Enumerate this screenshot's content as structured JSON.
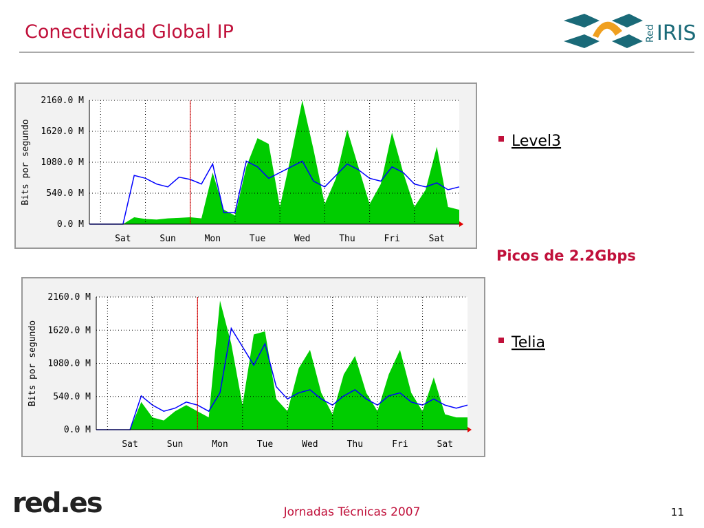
{
  "title": "Conectividad Global IP",
  "logo_top": {
    "prefix": "Red",
    "name": "IRIS"
  },
  "bullets": [
    "Level3",
    "Telia"
  ],
  "highlight": "Picos de 2.2Gbps",
  "logo_bottom": "red.es",
  "footer": "Jornadas Técnicas 2007",
  "page_number": "11",
  "chart_data": [
    {
      "type": "area",
      "ylabel": "Bits por segundo",
      "categories": [
        null,
        null,
        null,
        "Sat",
        null,
        null,
        null,
        "Sun",
        null,
        null,
        null,
        "Mon",
        null,
        null,
        null,
        "Tue",
        null,
        null,
        null,
        "Wed",
        null,
        null,
        null,
        "Thu",
        null,
        null,
        null,
        "Fri",
        null,
        null,
        null,
        "Sat",
        null,
        null
      ],
      "ylim": [
        0,
        2160
      ],
      "yticks": [
        {
          "value": 0,
          "label": "0.0 M"
        },
        {
          "value": 540,
          "label": "540.0 M"
        },
        {
          "value": 1080,
          "label": "1080.0 M"
        },
        {
          "value": 1620,
          "label": "1620.0 M"
        },
        {
          "value": 2160,
          "label": "2160.0 M"
        }
      ],
      "grid": true,
      "series": [
        {
          "type": "area",
          "color": "#00cc00",
          "values": [
            0,
            0,
            0,
            0,
            120,
            90,
            80,
            100,
            110,
            120,
            100,
            900,
            250,
            150,
            1000,
            1500,
            1400,
            300,
            1200,
            2160,
            1300,
            350,
            800,
            1650,
            1000,
            350,
            700,
            1600,
            900,
            300,
            600,
            1350,
            300,
            250
          ]
        },
        {
          "type": "line",
          "color": "#0000ff",
          "values": [
            0,
            0,
            0,
            0,
            850,
            800,
            700,
            650,
            820,
            780,
            700,
            1050,
            200,
            200,
            1100,
            1000,
            800,
            900,
            1000,
            1100,
            750,
            650,
            850,
            1050,
            950,
            800,
            750,
            1000,
            900,
            700,
            650,
            720,
            600,
            650
          ]
        }
      ]
    },
    {
      "type": "area",
      "ylabel": "Bits por segundo",
      "categories": [
        null,
        null,
        null,
        "Sat",
        null,
        null,
        null,
        "Sun",
        null,
        null,
        null,
        "Mon",
        null,
        null,
        null,
        "Tue",
        null,
        null,
        null,
        "Wed",
        null,
        null,
        null,
        "Thu",
        null,
        null,
        null,
        "Fri",
        null,
        null,
        null,
        "Sat",
        null,
        null
      ],
      "ylim": [
        0,
        2160
      ],
      "yticks": [
        {
          "value": 0,
          "label": "0.0 M"
        },
        {
          "value": 540,
          "label": "540.0 M"
        },
        {
          "value": 1080,
          "label": "1080.0 M"
        },
        {
          "value": 1620,
          "label": "1620.0 M"
        },
        {
          "value": 2160,
          "label": "2160.0 M"
        }
      ],
      "grid": true,
      "series": [
        {
          "type": "area",
          "color": "#00cc00",
          "values": [
            0,
            0,
            0,
            0,
            450,
            200,
            150,
            300,
            400,
            300,
            200,
            2100,
            1400,
            400,
            1550,
            1600,
            500,
            300,
            1000,
            1300,
            600,
            250,
            900,
            1200,
            600,
            300,
            900,
            1300,
            600,
            300,
            850,
            250,
            200,
            200
          ]
        },
        {
          "type": "line",
          "color": "#0000ff",
          "values": [
            0,
            0,
            0,
            0,
            550,
            400,
            300,
            350,
            450,
            400,
            300,
            600,
            1650,
            1350,
            1050,
            1400,
            700,
            500,
            600,
            650,
            500,
            400,
            550,
            650,
            500,
            400,
            550,
            600,
            450,
            400,
            500,
            400,
            350,
            400
          ]
        }
      ]
    }
  ]
}
